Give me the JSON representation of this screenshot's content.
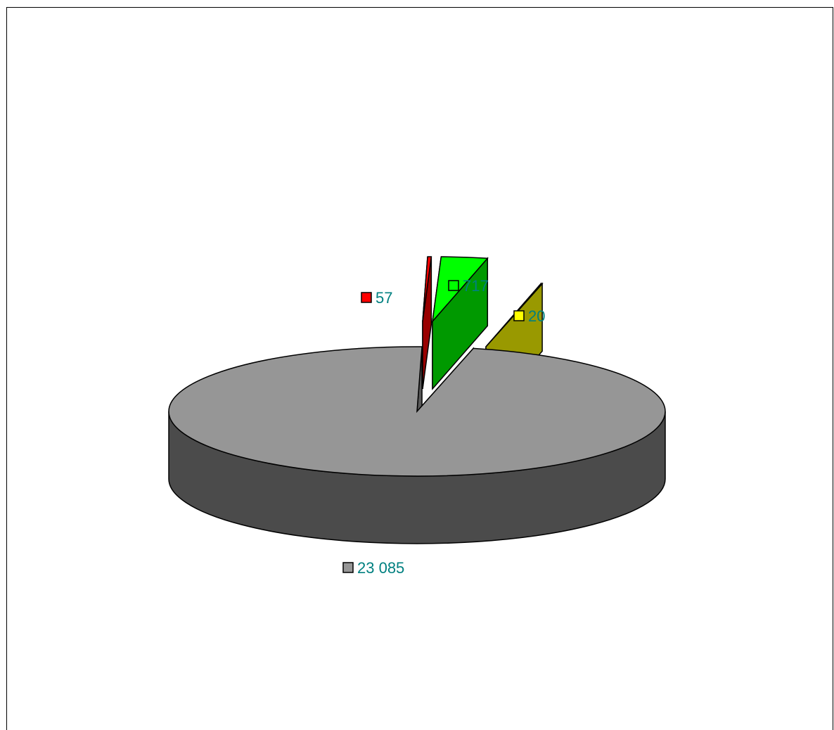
{
  "chart_data": {
    "type": "pie",
    "style": "3d-exploded",
    "slices": [
      {
        "label": "57",
        "value": 57,
        "color": "#ff0000"
      },
      {
        "label": "717",
        "value": 717,
        "color": "#00ff00"
      },
      {
        "label": "20",
        "value": 20,
        "color": "#ffff00"
      },
      {
        "label": "23 085",
        "value": 23085,
        "color": "#969696"
      }
    ],
    "label_color": "#008080",
    "legend": "none"
  }
}
